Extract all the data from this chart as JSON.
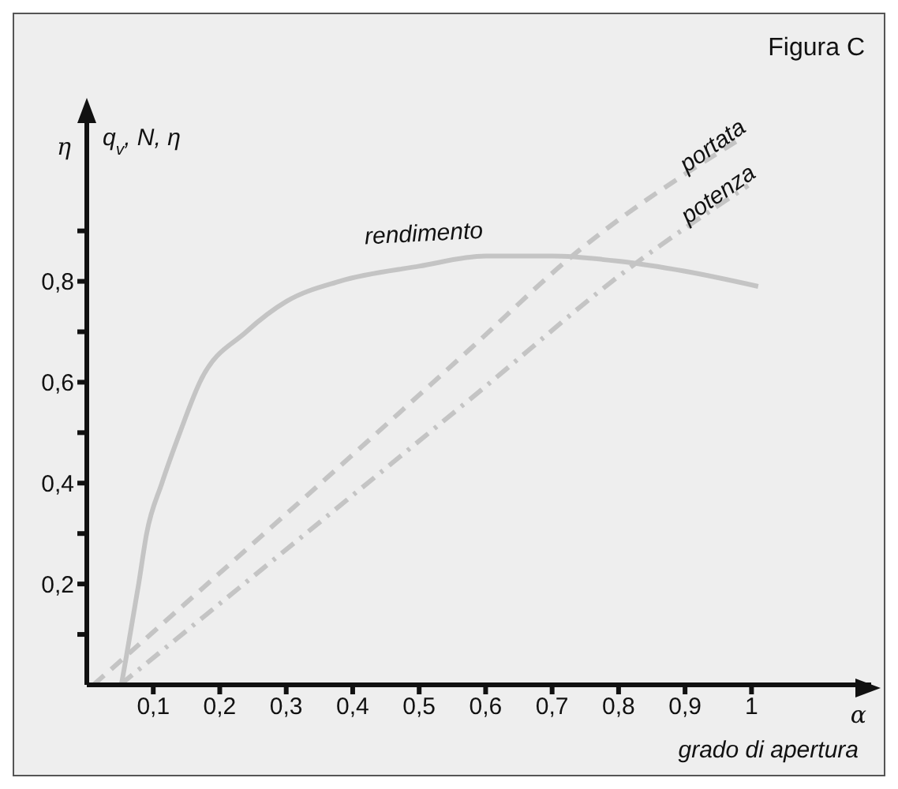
{
  "chart_data": {
    "type": "line",
    "title": "Figura C",
    "xlabel": "grado di apertura",
    "ylabel": "q$_{v}$, N, η",
    "annotations": [
      "η",
      "α"
    ],
    "xlim": [
      0,
      1.18
    ],
    "ylim": [
      0,
      1.12
    ],
    "xticks": [
      {
        "value": 0.1,
        "label": "0,1"
      },
      {
        "value": 0.2,
        "label": "0,2"
      },
      {
        "value": 0.3,
        "label": "0,3"
      },
      {
        "value": 0.4,
        "label": "0,4"
      },
      {
        "value": 0.5,
        "label": "0,5"
      },
      {
        "value": 0.6,
        "label": "0,6"
      },
      {
        "value": 0.7,
        "label": "0,7"
      },
      {
        "value": 0.8,
        "label": "0,8"
      },
      {
        "value": 0.9,
        "label": "0,9"
      },
      {
        "value": 1,
        "label": "1"
      }
    ],
    "yticks": [
      {
        "value": 0.1,
        "label": null
      },
      {
        "value": 0.2,
        "label": "0,2"
      },
      {
        "value": 0.3,
        "label": null
      },
      {
        "value": 0.4,
        "label": "0,4"
      },
      {
        "value": 0.5,
        "label": null
      },
      {
        "value": 0.6,
        "label": "0,6"
      },
      {
        "value": 0.7,
        "label": null
      },
      {
        "value": 0.8,
        "label": "0,8"
      },
      {
        "value": 0.9,
        "label": null
      }
    ],
    "grid": false,
    "marker": "none",
    "series": [
      {
        "name": "rendimento",
        "color": "#c4c4c4",
        "line_style": "solid",
        "x": [
          0.052,
          0.06,
          0.078,
          0.09,
          0.113,
          0.14,
          0.17,
          0.24,
          0.3,
          0.38,
          0.5,
          0.6,
          0.7,
          0.8,
          0.9,
          1.01
        ],
        "values": [
          0,
          0.06,
          0.2,
          0.3,
          0.4,
          0.5,
          0.6,
          0.7,
          0.76,
          0.8,
          0.83,
          0.85,
          0.85,
          0.84,
          0.82,
          0.79
        ]
      },
      {
        "name": "portata",
        "color": "#c4c4c4",
        "line_style": "dashed",
        "x": [
          0.01,
          0.58,
          0.73,
          0.98
        ],
        "values": [
          0,
          0.67,
          0.85,
          1.08
        ]
      },
      {
        "name": "potenza",
        "color": "#c4c4c4",
        "line_style": "dashdot",
        "x": [
          0.05,
          0.58,
          0.82,
          0.995
        ],
        "values": [
          0,
          0.57,
          0.83,
          0.99
        ]
      }
    ]
  }
}
